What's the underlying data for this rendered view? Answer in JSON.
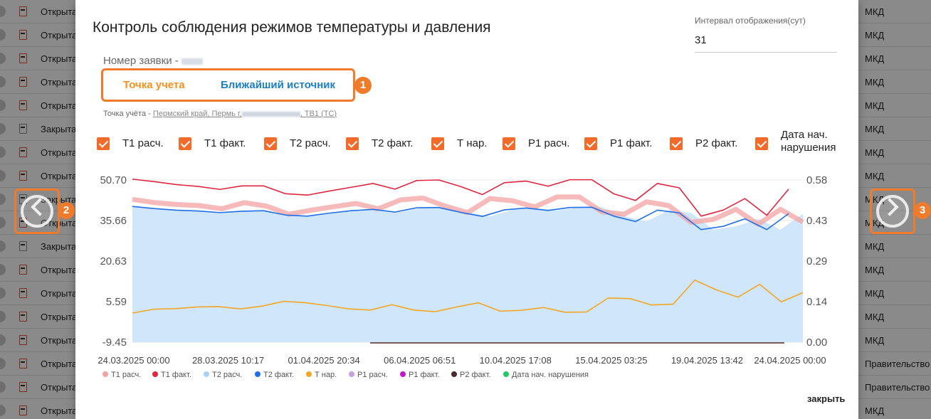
{
  "background": {
    "rows": [
      {
        "status": "Открыта",
        "type": "МКД",
        "icon": "edit-doc-icon",
        "muted": false
      },
      {
        "status": "Открыта",
        "type": "МКД",
        "icon": "edit-doc-icon",
        "muted": false
      },
      {
        "status": "Открыта",
        "type": "МКД",
        "icon": "edit-doc-icon",
        "muted": false
      },
      {
        "status": "Открыта",
        "type": "МКД",
        "icon": "edit-doc-icon",
        "muted": false
      },
      {
        "status": "Открыта",
        "type": "МКД",
        "icon": "edit-doc-icon",
        "muted": false
      },
      {
        "status": "Закрыта",
        "type": "МКД",
        "icon": "edit-doc-icon",
        "muted": true
      },
      {
        "status": "Открыта",
        "type": "МКД",
        "icon": "edit-doc-icon",
        "muted": false
      },
      {
        "status": "Открыта",
        "type": "МКД",
        "icon": "edit-doc-icon",
        "muted": false
      },
      {
        "status": "Закрыта",
        "type": "МКД",
        "icon": "edit-doc-icon",
        "muted": true
      },
      {
        "status": "Открыта",
        "type": "МКД",
        "icon": "edit-doc-icon",
        "muted": false
      },
      {
        "status": "Закрыта",
        "type": "МКД",
        "icon": "edit-doc-icon",
        "muted": true
      },
      {
        "status": "Открыта",
        "type": "МКД",
        "icon": "edit-doc-icon",
        "muted": false
      },
      {
        "status": "Открыта",
        "type": "МКД",
        "icon": "edit-doc-icon",
        "muted": false
      },
      {
        "status": "Открыта",
        "type": "МКД",
        "icon": "edit-doc-icon",
        "muted": false
      },
      {
        "status": "Открыта",
        "type": "МКД",
        "icon": "edit-doc-icon",
        "muted": false
      },
      {
        "status": "Открыта",
        "type": "Правительство",
        "icon": "edit-doc-icon",
        "muted": false
      },
      {
        "status": "Открыта",
        "type": "Правительство",
        "icon": "edit-doc-icon",
        "muted": false
      },
      {
        "status": "Открыта",
        "type": "МКД",
        "icon": "edit-doc-icon",
        "muted": false
      }
    ]
  },
  "modal": {
    "title": "Контроль соблюдения режимов температуры и давления",
    "interval_label": "Интервал отображения(сут)",
    "interval_value": "31",
    "order_label": "Номер заявки -",
    "tabs": [
      {
        "label": "Точка учета",
        "active": true
      },
      {
        "label": "Ближайший источник",
        "active": false
      }
    ],
    "point_prefix": "Точка учёта -",
    "point_address_start": "Пермский край, Пермь г,",
    "point_address_end": ", ТВ1 (ТС)",
    "checkboxes": [
      {
        "label": "Т1 расч.",
        "checked": true
      },
      {
        "label": "Т1 факт.",
        "checked": true
      },
      {
        "label": "Т2 расч.",
        "checked": true
      },
      {
        "label": "Т2 факт.",
        "checked": true
      },
      {
        "label": "Т нар.",
        "checked": true
      },
      {
        "label": "Р1 расч.",
        "checked": true
      },
      {
        "label": "Р1 факт.",
        "checked": true
      },
      {
        "label": "Р2 факт.",
        "checked": true
      },
      {
        "label": "Дата нач.",
        "label_line2": "нарушения",
        "checked": true
      }
    ],
    "close_label": "закрыть",
    "callouts": [
      "1",
      "2",
      "3"
    ],
    "accent_color": "#f07b2a"
  },
  "chart_data": {
    "type": "line",
    "y_left_ticks": [
      "50.70",
      "35.66",
      "20.63",
      "5.59",
      "-9.45"
    ],
    "y_right_ticks": [
      "0.58",
      "0.43",
      "0.29",
      "0.14",
      "0.00"
    ],
    "ylim_left": [
      -9.45,
      50.7
    ],
    "ylim_right": [
      0.0,
      0.58
    ],
    "x_ticks": [
      "24.03.2025 00:00",
      "28.03.2025 10:17",
      "01.04.2025 20:34",
      "06.04.2025 06:51",
      "10.04.2025 17:08",
      "15.04.2025 03:25",
      "19.04.2025 13:42",
      "24.04.2025 00:00"
    ],
    "grid": true,
    "legend_position": "bottom-left",
    "series": [
      {
        "name": "Т1 расч.",
        "color": "#f4a3a3",
        "values": [
          43.5,
          42.3,
          41.6,
          41.2,
          40.0,
          42.3,
          41.0,
          38.0,
          39.5,
          40.8,
          42.0,
          40.0,
          43.3,
          44.0,
          41.0,
          38.6,
          43.8,
          43.0,
          40.7,
          44.4,
          44.4,
          38.9,
          38.0,
          42.6,
          41.2,
          35.0,
          36.1,
          39.8,
          34.3,
          39.8,
          35.1
        ]
      },
      {
        "name": "Т1 факт.",
        "color": "#e0263f",
        "values": [
          51.0,
          50.1,
          49.0,
          48.3,
          47.2,
          48.5,
          48.5,
          45.6,
          45.1,
          46.6,
          48.0,
          49.4,
          47.3,
          50.5,
          50.7,
          48.3,
          45.3,
          49.7,
          50.3,
          48.4,
          50.8,
          50.8,
          45.6,
          43.1,
          49.4,
          47.8,
          37.3,
          39.5,
          43.8,
          37.6,
          47.3
        ]
      },
      {
        "name": "Т2 расч.",
        "color": "#a9d2f5",
        "values": []
      },
      {
        "name": "Т2 факт.",
        "color": "#1f6fe8",
        "values": [
          40.9,
          40.1,
          39.5,
          39.2,
          38.6,
          39.1,
          39.3,
          37.7,
          37.3,
          38.4,
          39.3,
          39.8,
          38.8,
          40.4,
          40.5,
          38.7,
          37.2,
          39.6,
          40.3,
          39.4,
          40.5,
          40.6,
          37.3,
          35.3,
          39.5,
          38.5,
          32.3,
          33.5,
          36.3,
          32.3,
          38.2
        ]
      },
      {
        "name": "Т нар.",
        "color": "#f5a623",
        "values": [
          0.104,
          0.118,
          0.12,
          0.126,
          0.127,
          0.119,
          0.129,
          0.146,
          0.141,
          0.131,
          0.119,
          0.115,
          0.134,
          0.115,
          0.109,
          0.126,
          0.141,
          0.111,
          0.114,
          0.124,
          0.107,
          0.108,
          0.158,
          0.156,
          0.133,
          0.136,
          0.222,
          0.187,
          0.161,
          0.207,
          0.144,
          0.177
        ]
      },
      {
        "name": "Р1 расч.",
        "color": "#c9a0dc",
        "values": []
      },
      {
        "name": "Р1 факт.",
        "color": "#c01ac8",
        "values": []
      },
      {
        "name": "Р2 факт.",
        "color": "#4a2a2a",
        "values": [
          0.0,
          0.0
        ]
      },
      {
        "name": "Дата нач. нарушения",
        "color": "#1fc96a",
        "values": []
      }
    ]
  }
}
